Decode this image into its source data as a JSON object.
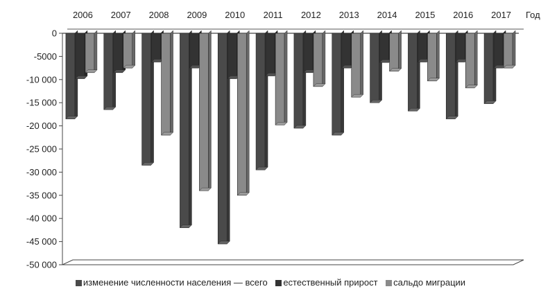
{
  "chart_data": {
    "type": "bar",
    "categories": [
      "2006",
      "2007",
      "2008",
      "2009",
      "2010",
      "2011",
      "2012",
      "2013",
      "2014",
      "2015",
      "2016",
      "2017"
    ],
    "x_axis_label": "Год",
    "ylim": [
      -50000,
      0
    ],
    "y_ticks": [
      {
        "value": 0,
        "label": "0"
      },
      {
        "value": -5000,
        "label": "-5000"
      },
      {
        "value": -10000,
        "label": "-10 000"
      },
      {
        "value": -15000,
        "label": "-15 000"
      },
      {
        "value": -20000,
        "label": "-20 000"
      },
      {
        "value": -25000,
        "label": "-25 000"
      },
      {
        "value": -30000,
        "label": "-30 000"
      },
      {
        "value": -35000,
        "label": "-35 000"
      },
      {
        "value": -40000,
        "label": "-40 000"
      },
      {
        "value": -45000,
        "label": "-45 000"
      },
      {
        "value": -50000,
        "label": "-50 000"
      }
    ],
    "grid": false,
    "legend_position": "bottom",
    "series": [
      {
        "name": "изменение численности населения — всего",
        "color": "#4a4a4a",
        "values": [
          -18500,
          -16500,
          -28500,
          -42000,
          -45500,
          -29500,
          -20500,
          -22000,
          -15000,
          -16800,
          -18500,
          -15200
        ]
      },
      {
        "name": "естественный прирост",
        "color": "#333333",
        "values": [
          -9800,
          -8500,
          -6200,
          -7500,
          -9800,
          -9200,
          -8500,
          -7500,
          -6300,
          -6200,
          -6200,
          -7500
        ]
      },
      {
        "name": "сальдо миграции",
        "color": "#8a8a8a",
        "values": [
          -8500,
          -7500,
          -22000,
          -34000,
          -35000,
          -19800,
          -11500,
          -13800,
          -8200,
          -10300,
          -11800,
          -7500
        ]
      }
    ]
  }
}
